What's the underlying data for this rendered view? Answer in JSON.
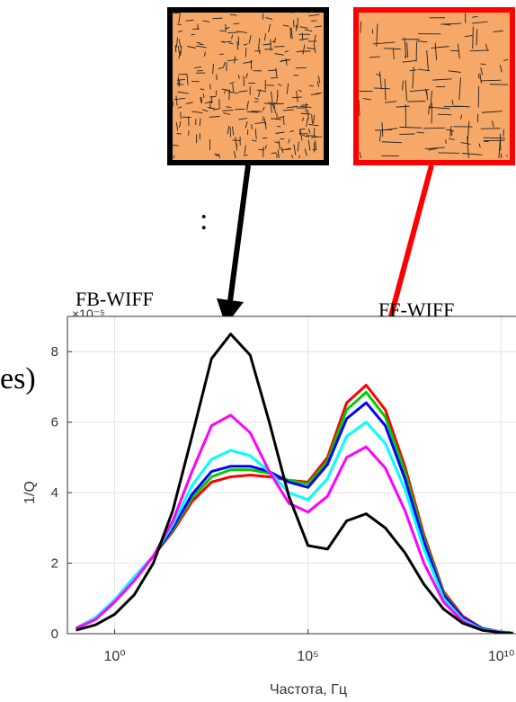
{
  "slide_fragments": [
    ":",
    "es)"
  ],
  "chart_data": {
    "type": "line",
    "annotations": [
      "FB-WIFF",
      "FF-WIFF"
    ],
    "y_multiplier": "×10⁻⁵",
    "x_label": "Частота, Гц",
    "y_label": "1/Q",
    "x_scale": "log",
    "grid": true,
    "xlim": [
      0.06,
      24000000000
    ],
    "ylim": [
      0,
      9
    ],
    "xticks": [
      {
        "value": 1,
        "label": "10⁰"
      },
      {
        "value": 100000,
        "label": "10⁵"
      },
      {
        "value": 10000000000,
        "label": "10¹⁰"
      }
    ],
    "yticks": [
      0,
      2,
      4,
      6,
      8
    ],
    "x": [
      0.1,
      0.32,
      1,
      3.2,
      10,
      32,
      100,
      320,
      1000,
      3200,
      10000,
      32000,
      100000,
      320000,
      1000000,
      3200000,
      10000000,
      32000000,
      100000000,
      320000000,
      1000000000,
      3200000000,
      10000000000,
      20000000000
    ],
    "series": [
      {
        "color": "#000000",
        "values": [
          0.1,
          0.25,
          0.55,
          1.1,
          2.0,
          3.5,
          5.6,
          7.8,
          8.5,
          7.9,
          6.0,
          3.9,
          2.5,
          2.4,
          3.2,
          3.4,
          3.0,
          2.3,
          1.4,
          0.7,
          0.3,
          0.1,
          0.03,
          0.01
        ]
      },
      {
        "color": "#ff00ff",
        "values": [
          0.15,
          0.4,
          0.9,
          1.5,
          2.2,
          3.2,
          4.6,
          5.9,
          6.2,
          5.7,
          4.6,
          3.7,
          3.45,
          3.9,
          5.0,
          5.3,
          4.7,
          3.5,
          2.0,
          0.9,
          0.35,
          0.1,
          0.04,
          0.02
        ]
      },
      {
        "color": "#00ffff",
        "values": [
          0.15,
          0.45,
          0.95,
          1.6,
          2.2,
          3.1,
          4.2,
          4.95,
          5.2,
          5.05,
          4.6,
          4.0,
          3.8,
          4.4,
          5.6,
          6.0,
          5.4,
          4.1,
          2.4,
          1.0,
          0.4,
          0.12,
          0.05,
          0.02
        ]
      },
      {
        "color": "#0000ff",
        "values": [
          0.15,
          0.45,
          0.95,
          1.6,
          2.2,
          3.0,
          3.95,
          4.6,
          4.75,
          4.75,
          4.6,
          4.3,
          4.15,
          4.8,
          6.1,
          6.55,
          5.9,
          4.4,
          2.6,
          1.1,
          0.45,
          0.15,
          0.05,
          0.02
        ]
      },
      {
        "color": "#00cc00",
        "values": [
          0.15,
          0.45,
          0.95,
          1.6,
          2.2,
          2.95,
          3.85,
          4.45,
          4.65,
          4.65,
          4.55,
          4.35,
          4.25,
          4.9,
          6.35,
          6.85,
          6.15,
          4.6,
          2.7,
          1.15,
          0.45,
          0.15,
          0.05,
          0.02
        ]
      },
      {
        "color": "#ff0000",
        "values": [
          0.15,
          0.45,
          0.95,
          1.6,
          2.2,
          2.9,
          3.75,
          4.3,
          4.45,
          4.5,
          4.45,
          4.35,
          4.3,
          5.0,
          6.55,
          7.05,
          6.35,
          4.75,
          2.8,
          1.2,
          0.5,
          0.15,
          0.05,
          0.02
        ]
      }
    ]
  }
}
